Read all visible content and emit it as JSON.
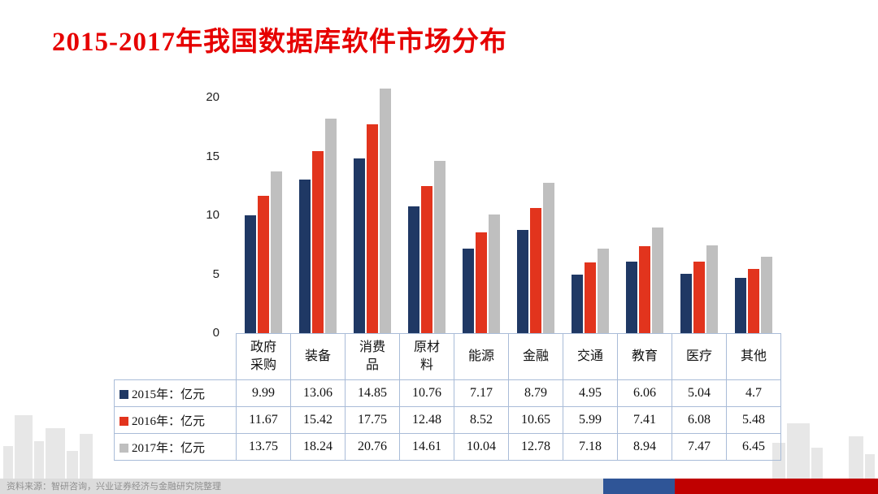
{
  "title": "2015-2017年我国数据库软件市场分布",
  "title_color": "#e60000",
  "footer": {
    "source_text": "资料来源：智研咨询，兴业证券经济与金融研究院整理",
    "strip_bg": "#dcdcdc",
    "text_color": "#8f8f8f",
    "blue_bar_color": "#2f5597",
    "red_bar_color": "#c00000"
  },
  "chart_data": {
    "type": "bar",
    "title": "2015-2017年我国数据库软件市场分布",
    "unit": "亿元",
    "xlabel": "",
    "ylabel": "",
    "ylim": [
      0,
      21
    ],
    "grid": false,
    "legend_position": "table-left",
    "y_ticks": [
      0,
      5,
      10,
      15,
      20
    ],
    "categories": [
      "政府采购",
      "装备",
      "消费品",
      "原材料",
      "能源",
      "金融",
      "交通",
      "教育",
      "医疗",
      "其他"
    ],
    "category_header_lines": [
      [
        "政府",
        "采购"
      ],
      [
        "装备"
      ],
      [
        "消费",
        "品"
      ],
      [
        "原材",
        "料"
      ],
      [
        "能源"
      ],
      [
        "金融"
      ],
      [
        "交通"
      ],
      [
        "教育"
      ],
      [
        "医疗"
      ],
      [
        "其他"
      ]
    ],
    "series": [
      {
        "name": "2015",
        "legend_label": "2015年：亿元",
        "color": "#1f3864",
        "values": [
          9.99,
          13.06,
          14.85,
          10.76,
          7.17,
          8.79,
          4.95,
          6.06,
          5.04,
          4.7
        ]
      },
      {
        "name": "2016",
        "legend_label": "2016年：亿元",
        "color": "#e2341d",
        "values": [
          11.67,
          15.42,
          17.75,
          12.48,
          8.52,
          10.65,
          5.99,
          7.41,
          6.08,
          5.48
        ]
      },
      {
        "name": "2017",
        "legend_label": "2017年：亿元",
        "color": "#bfbfbf",
        "values": [
          13.75,
          18.24,
          20.76,
          14.61,
          10.04,
          12.78,
          7.18,
          8.94,
          7.47,
          6.45
        ]
      }
    ]
  }
}
